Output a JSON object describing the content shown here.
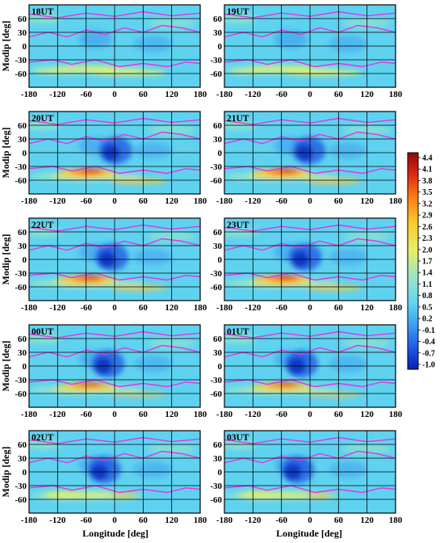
{
  "chart_data": {
    "type": "heatmap",
    "panels": [
      {
        "label": "18UT"
      },
      {
        "label": "19UT"
      },
      {
        "label": "20UT"
      },
      {
        "label": "21UT"
      },
      {
        "label": "22UT"
      },
      {
        "label": "23UT"
      },
      {
        "label": "00UT"
      },
      {
        "label": "01UT"
      },
      {
        "label": "02UT"
      },
      {
        "label": "03UT"
      }
    ],
    "xlabel": "Longitude [deg]",
    "ylabel": "Modip [deg]",
    "xlim": [
      -180,
      180
    ],
    "ylim": [
      -90,
      90
    ],
    "x_ticks": [
      "-180",
      "-120",
      "-60",
      "0",
      "60",
      "120",
      "180"
    ],
    "y_ticks": [
      "60",
      "30",
      "0",
      "-30",
      "-60"
    ],
    "grid": true,
    "colorbar": {
      "ticks": [
        "4.4",
        "4.1",
        "3.8",
        "3.5",
        "3.2",
        "2.9",
        "2.6",
        "2.3",
        "2.0",
        "1.7",
        "1.4",
        "1.1",
        "0.8",
        "0.5",
        "0.2",
        "-0.1",
        "-0.4",
        "-0.7",
        "-1.0"
      ],
      "range": [
        -1.0,
        4.4
      ],
      "colors": [
        "#0a1eb4",
        "#1e5ae6",
        "#3c9bf0",
        "#5fd2f0",
        "#96e6c8",
        "#e6f064",
        "#ffc828",
        "#ff7814",
        "#dc2814",
        "#8c0a0a"
      ]
    },
    "contour_color": "#e632e6"
  }
}
